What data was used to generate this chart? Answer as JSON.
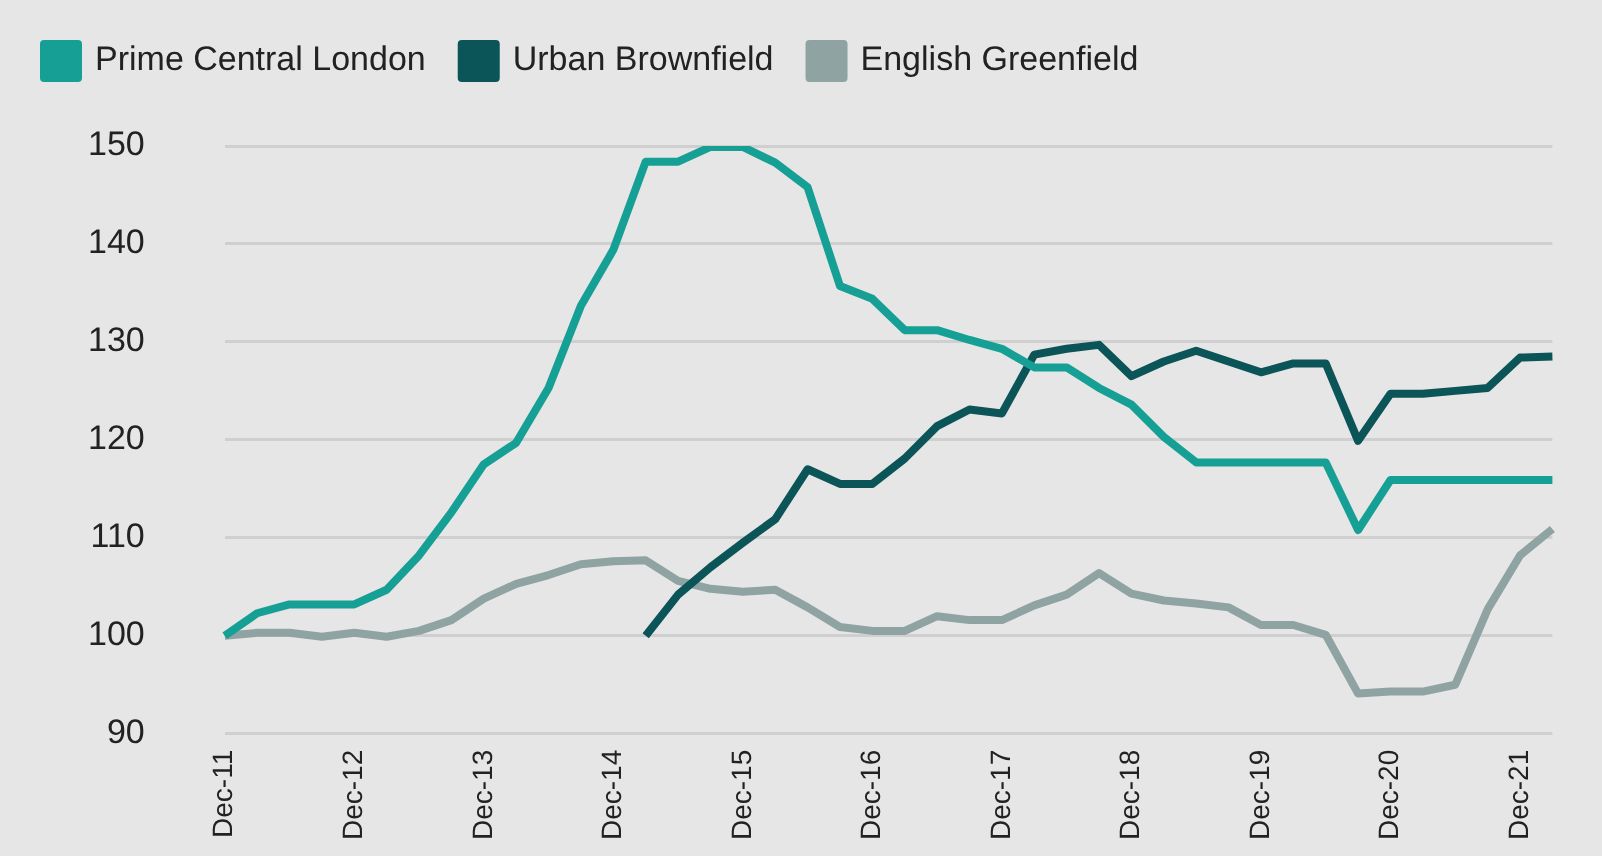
{
  "chart_data": {
    "type": "line",
    "categories": [
      "Dec-11",
      null,
      null,
      null,
      "Dec-12",
      null,
      null,
      null,
      "Dec-13",
      null,
      null,
      null,
      "Dec-14",
      null,
      null,
      null,
      "Dec-15",
      null,
      null,
      null,
      "Dec-16",
      null,
      null,
      null,
      "Dec-17",
      null,
      null,
      null,
      "Dec-18",
      null,
      null,
      null,
      "Dec-19",
      null,
      null,
      null,
      "Dec-20",
      null,
      null,
      null,
      "Dec-21",
      null
    ],
    "series": [
      {
        "name": "Prime Central London",
        "color": "#16a095",
        "values": [
          100,
          102.3,
          103.2,
          103.2,
          103.2,
          104.7,
          108.2,
          112.6,
          117.5,
          119.7,
          125.3,
          133.7,
          139.4,
          148.4,
          148.4,
          149.9,
          149.9,
          148.3,
          145.8,
          135.7,
          134.4,
          131.2,
          131.2,
          130.2,
          129.3,
          127.4,
          127.4,
          125.3,
          123.6,
          120.3,
          117.7,
          117.7,
          117.7,
          117.7,
          117.7,
          110.8,
          115.9,
          115.9,
          115.9,
          115.9,
          115.9,
          115.9
        ]
      },
      {
        "name": "Urban Brownfield",
        "color": "#0b5458",
        "values": [
          null,
          null,
          null,
          null,
          null,
          null,
          null,
          null,
          null,
          null,
          null,
          null,
          null,
          100,
          104.2,
          107,
          109.5,
          111.9,
          117,
          115.5,
          115.5,
          118.1,
          121.4,
          123.1,
          122.7,
          128.7,
          129.3,
          129.7,
          126.5,
          128,
          129.1,
          128,
          126.9,
          127.8,
          127.8,
          119.9,
          124.7,
          124.7,
          125,
          125.3,
          128.4,
          128.5
        ]
      },
      {
        "name": "English Greenfield",
        "color": "#8fa3a3",
        "values": [
          100,
          100.3,
          100.3,
          99.9,
          100.3,
          99.9,
          100.5,
          101.6,
          103.8,
          105.3,
          106.2,
          107.3,
          107.6,
          107.7,
          105.6,
          104.8,
          104.5,
          104.7,
          102.9,
          100.9,
          100.5,
          100.5,
          102,
          101.6,
          101.6,
          103.1,
          104.2,
          106.4,
          104.3,
          103.6,
          103.3,
          102.9,
          101.1,
          101.1,
          100.1,
          94.1,
          94.3,
          94.3,
          95,
          102.7,
          108.2,
          110.9
        ]
      }
    ],
    "ylim": [
      90,
      150
    ],
    "yticks": [
      90,
      100,
      110,
      120,
      130,
      140,
      150
    ],
    "grid": "y",
    "legend": "top left",
    "marker": "none",
    "line_style": "solid"
  }
}
